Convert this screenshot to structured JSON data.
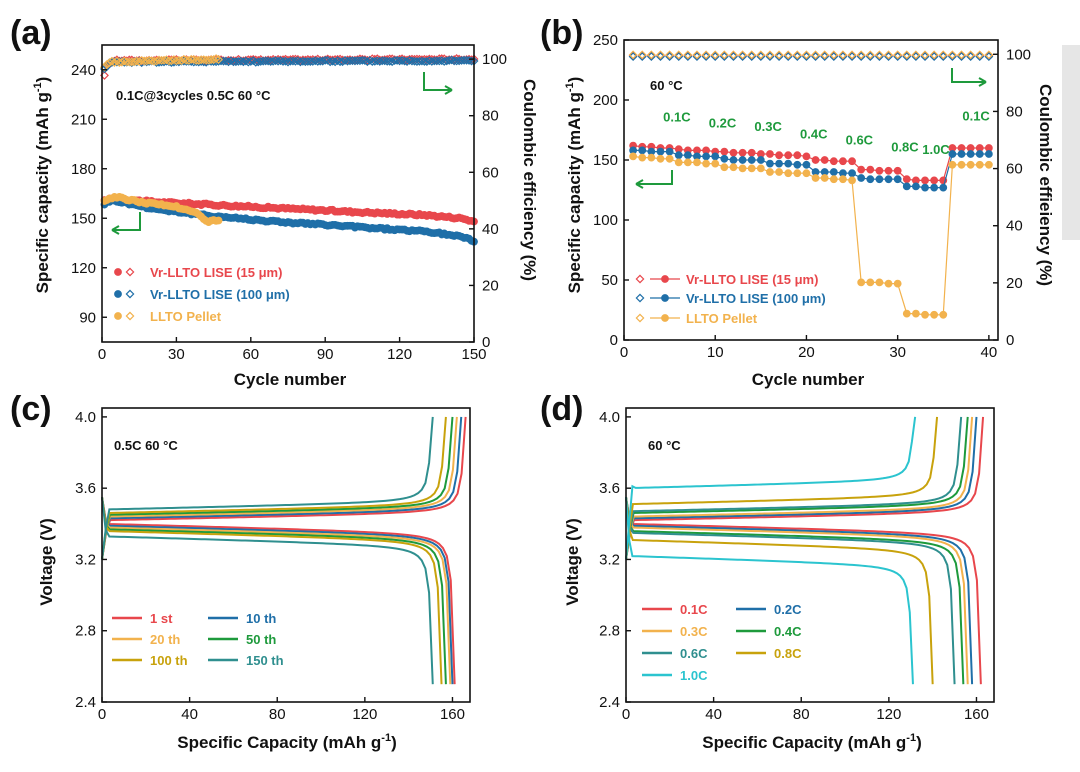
{
  "colors": {
    "red": "#e8474c",
    "blue": "#1f6fa8",
    "orange": "#f2b24d",
    "green": "#1e9a3c",
    "c1st": "#e8474c",
    "c10": "#1f6fa8",
    "c20": "#f2b24d",
    "c50": "#1e9a3c",
    "c100": "#c8a20c",
    "c150": "#2f8f8f",
    "r01": "#e8474c",
    "r02": "#1f6fa8",
    "r03": "#f2b24d",
    "r04": "#1e9a3c",
    "r06": "#2f8f8f",
    "r08": "#c8a20c",
    "r10": "#2bc4cf"
  },
  "chart_data": [
    {
      "panel": "(a)",
      "type": "scatter",
      "xlabel": "Cycle number",
      "ylabel": "Specific capacity (mAh g",
      "ylabel_sup": "-1",
      "ylabel_close": ")",
      "y2label": "Coulombic efficiency (%)",
      "xlim": [
        0,
        150
      ],
      "ylim": [
        75,
        255
      ],
      "y2lim": [
        0,
        105
      ],
      "xticks": [
        "0",
        "30",
        "60",
        "90",
        "120",
        "150"
      ],
      "yticks": [
        "90",
        "120",
        "150",
        "180",
        "210",
        "240"
      ],
      "y2ticks": [
        "0",
        "20",
        "40",
        "60",
        "80",
        "100"
      ],
      "annotation": "0.1C@3cycles  0.5C 60 °C",
      "series": [
        {
          "name": "Vr-LLTO LISE (15 μm)",
          "color_key": "red",
          "cycles": 150,
          "capacity": [
            [
              0,
              160
            ],
            [
              4,
              162
            ],
            [
              20,
              160
            ],
            [
              60,
              157
            ],
            [
              100,
              154
            ],
            [
              130,
              152
            ],
            [
              145,
              150
            ],
            [
              150,
              148
            ]
          ],
          "efficiency": [
            [
              0,
              90
            ],
            [
              2,
              98
            ],
            [
              5,
              99.5
            ],
            [
              150,
              100
            ]
          ]
        },
        {
          "name": "Vr-LLTO LISE (100 μm)",
          "color_key": "blue",
          "cycles": 150,
          "capacity": [
            [
              0,
              158
            ],
            [
              4,
              161
            ],
            [
              20,
              156
            ],
            [
              40,
              152
            ],
            [
              70,
              148
            ],
            [
              100,
              145
            ],
            [
              130,
              142
            ],
            [
              145,
              139
            ],
            [
              150,
              136
            ]
          ],
          "efficiency": [
            [
              0,
              95
            ],
            [
              3,
              99
            ],
            [
              150,
              99.5
            ]
          ]
        },
        {
          "name": "LLTO Pellet",
          "color_key": "orange",
          "cycles": 47,
          "capacity": [
            [
              0,
              160
            ],
            [
              5,
              163
            ],
            [
              15,
              160
            ],
            [
              30,
              157
            ],
            [
              38,
              153
            ],
            [
              43,
              148
            ],
            [
              47,
              149
            ]
          ],
          "efficiency": [
            [
              0,
              96
            ],
            [
              3,
              99
            ],
            [
              47,
              100
            ]
          ]
        }
      ]
    },
    {
      "panel": "(b)",
      "type": "scatter",
      "xlabel": "Cycle number",
      "ylabel": "Specific capacity (mAh g",
      "ylabel_sup": "-1",
      "ylabel_close": ")",
      "y2label": "Coulombic effieiency (%)",
      "xlim": [
        0,
        41
      ],
      "ylim": [
        0,
        250
      ],
      "y2lim": [
        0,
        105
      ],
      "xticks": [
        "0",
        "10",
        "20",
        "30",
        "40"
      ],
      "yticks": [
        "0",
        "50",
        "100",
        "150",
        "200",
        "250"
      ],
      "y2ticks": [
        "0",
        "20",
        "40",
        "60",
        "80",
        "100"
      ],
      "annotation": "60 °C",
      "rate_labels": [
        "0.1C",
        "0.2C",
        "0.3C",
        "0.4C",
        "0.6C",
        "0.8C",
        "1.0C",
        "0.1C"
      ],
      "rate_label_cycles": [
        5.8,
        10.8,
        15.8,
        20.8,
        25.8,
        30.8,
        34.2,
        38.6
      ],
      "rate_label_caps": [
        182,
        177,
        174,
        168,
        163,
        157,
        155,
        183
      ],
      "series": [
        {
          "name": "Vr-LLTO LISE (15 μm)",
          "color_key": "red",
          "capacity": [
            162,
            161,
            161,
            160,
            160,
            159,
            158,
            158,
            158,
            157,
            157,
            156,
            156,
            156,
            155,
            155,
            154,
            154,
            154,
            153,
            150,
            150,
            149,
            149,
            149,
            142,
            142,
            141,
            141,
            141,
            134,
            133,
            133,
            133,
            133,
            160,
            160,
            160,
            160,
            160
          ],
          "efficiency": 99.5
        },
        {
          "name": "Vr-LLTO LISE (100 μm)",
          "color_key": "blue",
          "capacity": [
            158,
            158,
            157,
            157,
            157,
            154,
            154,
            153,
            153,
            153,
            151,
            150,
            150,
            150,
            150,
            147,
            147,
            147,
            146,
            146,
            140,
            140,
            140,
            139,
            139,
            135,
            134,
            134,
            134,
            134,
            128,
            128,
            127,
            127,
            127,
            155,
            155,
            155,
            155,
            155
          ],
          "efficiency": 99.2
        },
        {
          "name": "LLTO Pellet",
          "color_key": "orange",
          "capacity": [
            153,
            152,
            152,
            151,
            151,
            148,
            148,
            148,
            147,
            147,
            144,
            144,
            143,
            143,
            143,
            140,
            140,
            139,
            139,
            139,
            135,
            135,
            134,
            134,
            133,
            48,
            48,
            48,
            47,
            47,
            22,
            22,
            21,
            21,
            21,
            146,
            146,
            146,
            146,
            146
          ],
          "efficiency": 99.8
        }
      ]
    },
    {
      "panel": "(c)",
      "type": "line",
      "xlabel": "Specific Capacity (mAh g",
      "xlabel_sup": "-1",
      "xlabel_close": ")",
      "ylabel": "Voltage (V)",
      "xlim": [
        0,
        168
      ],
      "ylim": [
        2.4,
        4.05
      ],
      "xticks": [
        "0",
        "40",
        "80",
        "120",
        "160"
      ],
      "yticks": [
        "2.4",
        "2.8",
        "3.2",
        "3.6",
        "4.0"
      ],
      "annotation": "0.5C 60 °C",
      "series": [
        {
          "name": "1 st",
          "color_key": "c1st",
          "charge_cap": 166,
          "discharge_cap": 161,
          "charge_v": 3.44,
          "discharge_v": 3.4
        },
        {
          "name": "10 th",
          "color_key": "c10",
          "charge_cap": 164,
          "discharge_cap": 160,
          "charge_v": 3.45,
          "discharge_v": 3.39
        },
        {
          "name": "20 th",
          "color_key": "c20",
          "charge_cap": 162,
          "discharge_cap": 159,
          "charge_v": 3.46,
          "discharge_v": 3.38
        },
        {
          "name": "50 th",
          "color_key": "c50",
          "charge_cap": 160,
          "discharge_cap": 157,
          "charge_v": 3.47,
          "discharge_v": 3.37
        },
        {
          "name": "100 th",
          "color_key": "c100",
          "charge_cap": 157,
          "discharge_cap": 155,
          "charge_v": 3.48,
          "discharge_v": 3.36
        },
        {
          "name": "150 th",
          "color_key": "c150",
          "charge_cap": 151,
          "discharge_cap": 151,
          "charge_v": 3.5,
          "discharge_v": 3.33
        }
      ]
    },
    {
      "panel": "(d)",
      "type": "line",
      "xlabel": "Specific Capacity (mAh g",
      "xlabel_sup": "-1",
      "xlabel_close": ")",
      "ylabel": "Voltage (V)",
      "xlim": [
        0,
        168
      ],
      "ylim": [
        2.4,
        4.05
      ],
      "xticks": [
        "0",
        "40",
        "80",
        "120",
        "160"
      ],
      "yticks": [
        "2.4",
        "2.8",
        "3.2",
        "3.6",
        "4.0"
      ],
      "annotation": "60 °C",
      "series": [
        {
          "name": "0.1C",
          "color_key": "r01",
          "charge_cap": 163,
          "discharge_cap": 162,
          "charge_v": 3.44,
          "discharge_v": 3.4
        },
        {
          "name": "0.2C",
          "color_key": "r02",
          "charge_cap": 160,
          "discharge_cap": 158,
          "charge_v": 3.45,
          "discharge_v": 3.39
        },
        {
          "name": "0.3C",
          "color_key": "r03",
          "charge_cap": 158,
          "discharge_cap": 156,
          "charge_v": 3.46,
          "discharge_v": 3.38
        },
        {
          "name": "0.4C",
          "color_key": "r04",
          "charge_cap": 156,
          "discharge_cap": 154,
          "charge_v": 3.48,
          "discharge_v": 3.36
        },
        {
          "name": "0.6C",
          "color_key": "r06",
          "charge_cap": 153,
          "discharge_cap": 150,
          "charge_v": 3.49,
          "discharge_v": 3.35
        },
        {
          "name": "0.8C",
          "color_key": "r08",
          "charge_cap": 142,
          "discharge_cap": 140,
          "charge_v": 3.53,
          "discharge_v": 3.31
        },
        {
          "name": "1.0C",
          "color_key": "r10",
          "charge_cap": 132,
          "discharge_cap": 131,
          "charge_v": 3.62,
          "discharge_v": 3.22
        }
      ]
    }
  ]
}
